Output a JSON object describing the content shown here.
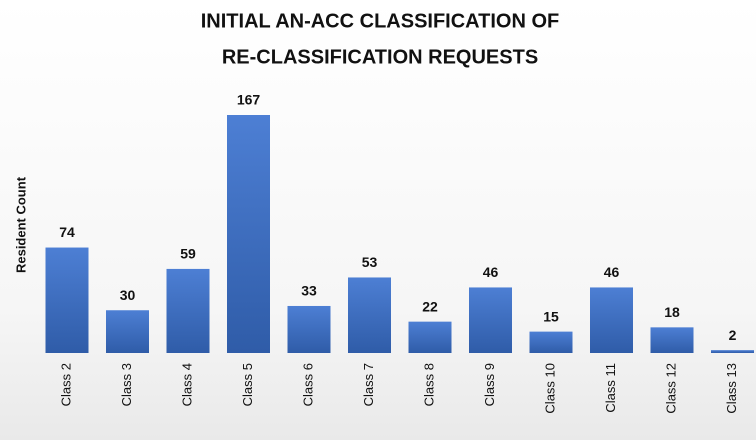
{
  "chart_data": {
    "type": "bar",
    "title": [
      "INITIAL AN-ACC CLASSIFICATION OF",
      "RE-CLASSIFICATION REQUESTS"
    ],
    "y_label": "Resident Count",
    "categories": [
      "Class 2",
      "Class 3",
      "Class 4",
      "Class 5",
      "Class 6",
      "Class 7",
      "Class 8",
      "Class 9",
      "Class 10",
      "Class 11",
      "Class 12",
      "Class 13"
    ],
    "values": [
      74,
      30,
      59,
      167,
      33,
      53,
      22,
      46,
      15,
      46,
      18,
      2
    ],
    "color": "#4472c4"
  }
}
